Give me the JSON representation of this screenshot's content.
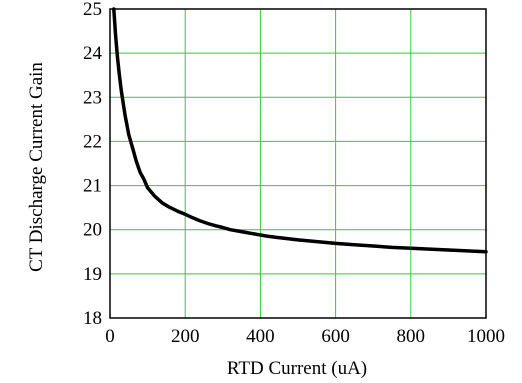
{
  "chart_data": {
    "type": "line",
    "title": "",
    "xlabel": "RTD Current (uA)",
    "ylabel": "CT Discharge Current Gain",
    "xlim": [
      0,
      1000
    ],
    "ylim": [
      18,
      25
    ],
    "x_ticks": [
      0,
      200,
      400,
      600,
      800,
      1000
    ],
    "y_ticks": [
      18,
      19,
      20,
      21,
      22,
      23,
      24,
      25
    ],
    "x_tick_labels": [
      "0",
      "200",
      "400",
      "600",
      "800",
      "1000"
    ],
    "y_tick_labels": [
      "18",
      "19",
      "20",
      "21",
      "22",
      "23",
      "24",
      "25"
    ],
    "grid": true,
    "grid_color": "#33cc33",
    "line_color": "#000000",
    "series": [
      {
        "x": [
          10,
          15,
          20,
          25,
          30,
          40,
          50,
          60,
          70,
          80,
          90,
          100,
          120,
          140,
          160,
          180,
          200,
          220,
          240,
          260,
          280,
          300,
          320,
          340,
          360,
          380,
          400,
          420,
          440,
          460,
          480,
          500,
          550,
          600,
          650,
          700,
          750,
          800,
          850,
          900,
          950,
          1000
        ],
        "y": [
          25.0,
          24.4,
          23.9,
          23.5,
          23.15,
          22.6,
          22.15,
          21.85,
          21.55,
          21.3,
          21.15,
          20.95,
          20.75,
          20.6,
          20.5,
          20.42,
          20.35,
          20.27,
          20.2,
          20.14,
          20.09,
          20.05,
          20.0,
          19.97,
          19.94,
          19.91,
          19.88,
          19.85,
          19.83,
          19.81,
          19.79,
          19.77,
          19.73,
          19.69,
          19.66,
          19.63,
          19.6,
          19.58,
          19.56,
          19.54,
          19.52,
          19.5
        ]
      }
    ]
  }
}
